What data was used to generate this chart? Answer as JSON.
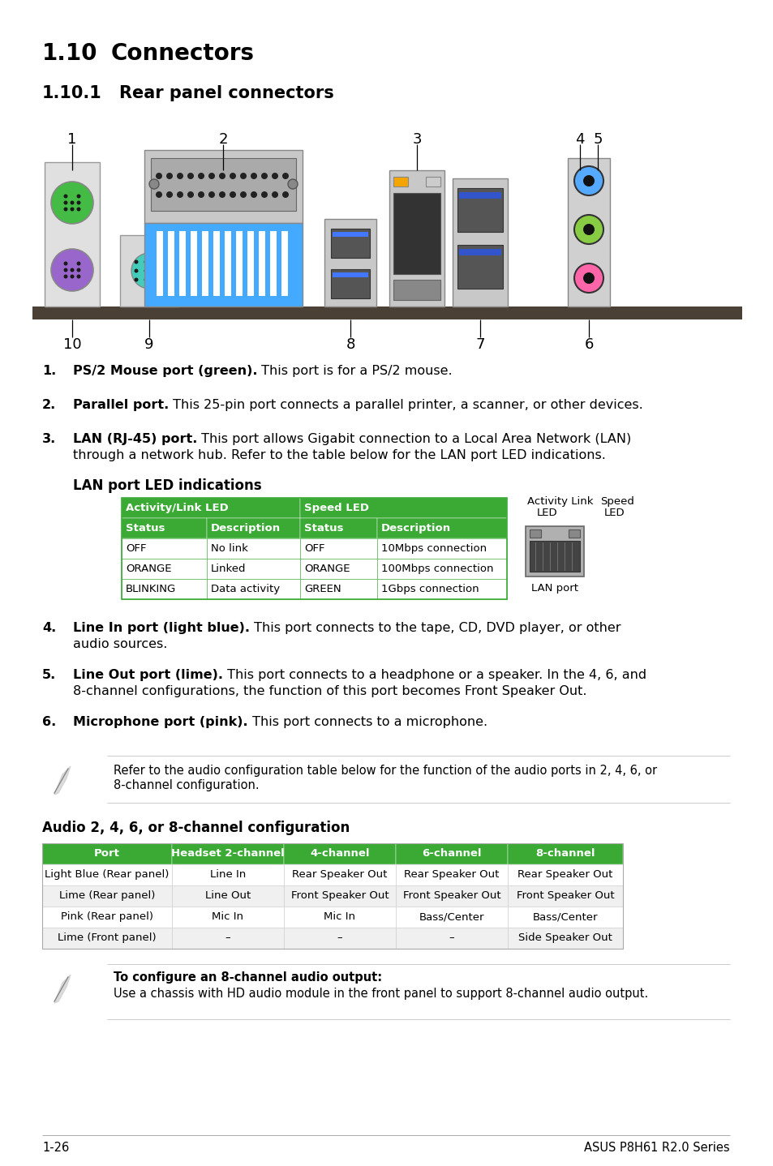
{
  "title1": "1.10",
  "title1_text": "Connectors",
  "title2": "1.10.1",
  "title2_text": "Rear panel connectors",
  "lan_subtitle": "LAN port LED indications",
  "lan_header1": "Activity/Link LED",
  "lan_header2": "Speed LED",
  "lan_col_headers": [
    "Status",
    "Description",
    "Status",
    "Description"
  ],
  "lan_rows": [
    [
      "OFF",
      "No link",
      "OFF",
      "10Mbps connection"
    ],
    [
      "ORANGE",
      "Linked",
      "ORANGE",
      "100Mbps connection"
    ],
    [
      "BLINKING",
      "Data activity",
      "GREEN",
      "1Gbps connection"
    ]
  ],
  "audio_subtitle": "Audio 2, 4, 6, or 8-channel configuration",
  "audio_headers": [
    "Port",
    "Headset 2-channel",
    "4-channel",
    "6-channel",
    "8-channel"
  ],
  "audio_rows": [
    [
      "Light Blue (Rear panel)",
      "Line In",
      "Rear Speaker Out",
      "Rear Speaker Out",
      "Rear Speaker Out"
    ],
    [
      "Lime (Rear panel)",
      "Line Out",
      "Front Speaker Out",
      "Front Speaker Out",
      "Front Speaker Out"
    ],
    [
      "Pink (Rear panel)",
      "Mic In",
      "Mic In",
      "Bass/Center",
      "Bass/Center"
    ],
    [
      "Lime (Front panel)",
      "–",
      "–",
      "–",
      "Side Speaker Out"
    ]
  ],
  "note2_bold": "To configure an 8-channel audio output:",
  "note2_text": "Use a chassis with HD audio module in the front panel to support 8-channel audio output.",
  "footer_left": "1-26",
  "footer_right": "ASUS P8H61 R2.0 Series",
  "green_header": "#3aaa35",
  "bg_color": "#ffffff"
}
